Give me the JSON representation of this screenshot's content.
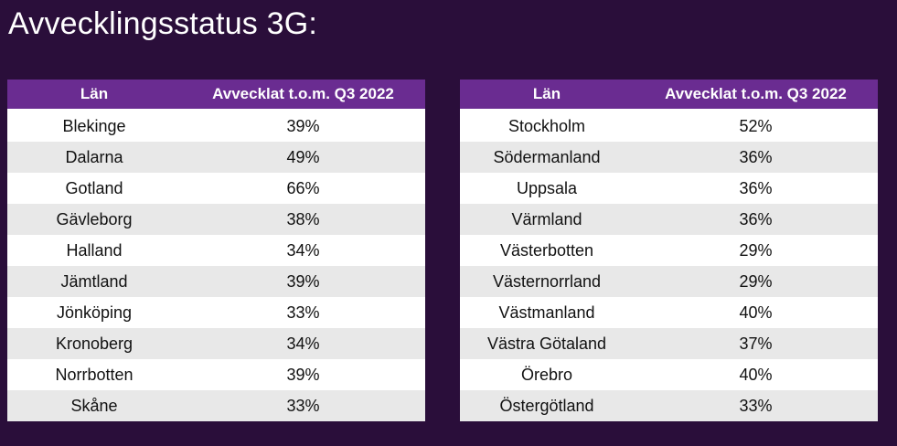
{
  "title": "Avvecklingsstatus 3G:",
  "tables": [
    {
      "headers": [
        "Län",
        "Avvecklat t.o.m. Q3 2022"
      ],
      "rows": [
        [
          "Blekinge",
          "39%"
        ],
        [
          "Dalarna",
          "49%"
        ],
        [
          "Gotland",
          "66%"
        ],
        [
          "Gävleborg",
          "38%"
        ],
        [
          "Halland",
          "34%"
        ],
        [
          "Jämtland",
          "39%"
        ],
        [
          "Jönköping",
          "33%"
        ],
        [
          "Kronoberg",
          "34%"
        ],
        [
          "Norrbotten",
          "39%"
        ],
        [
          "Skåne",
          "33%"
        ]
      ]
    },
    {
      "headers": [
        "Län",
        "Avvecklat t.o.m. Q3 2022"
      ],
      "rows": [
        [
          "Stockholm",
          "52%"
        ],
        [
          "Södermanland",
          "36%"
        ],
        [
          "Uppsala",
          "36%"
        ],
        [
          "Värmland",
          "36%"
        ],
        [
          "Västerbotten",
          "29%"
        ],
        [
          "Västernorrland",
          "29%"
        ],
        [
          "Västmanland",
          "40%"
        ],
        [
          "Västra Götaland",
          "37%"
        ],
        [
          "Örebro",
          "40%"
        ],
        [
          "Östergötland",
          "33%"
        ]
      ]
    }
  ],
  "colors": {
    "background": "#2a0e3a",
    "header": "#6a2c91",
    "row_light": "#ffffff",
    "row_shaded": "#e8e8e8"
  }
}
